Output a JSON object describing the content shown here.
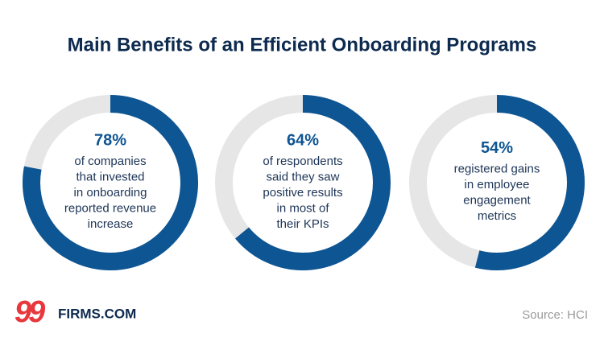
{
  "title": "Main Benefits of an Efficient Onboarding Programs",
  "chart_data": [
    {
      "type": "donut",
      "values": [
        78
      ],
      "value_labels": [
        "78%"
      ],
      "text": [
        "of companies",
        "that invested",
        "in onboarding",
        "reported revenue",
        "increase"
      ],
      "color": "#0e5593",
      "track_color": "#e6e6e6"
    },
    {
      "type": "donut",
      "values": [
        64
      ],
      "value_labels": [
        "64%"
      ],
      "text": [
        "of respondents",
        "said they saw",
        "positive results",
        "in most of",
        "their KPIs"
      ],
      "color": "#0e5593",
      "track_color": "#e6e6e6"
    },
    {
      "type": "donut",
      "values": [
        54
      ],
      "value_labels": [
        "54%"
      ],
      "text": [
        "registered gains",
        "in employee",
        "engagement",
        "metrics"
      ],
      "color": "#0e5593",
      "track_color": "#e6e6e6"
    }
  ],
  "logo": {
    "mark": "99",
    "text": "FIRMS.COM"
  },
  "source": "Source: HCI"
}
